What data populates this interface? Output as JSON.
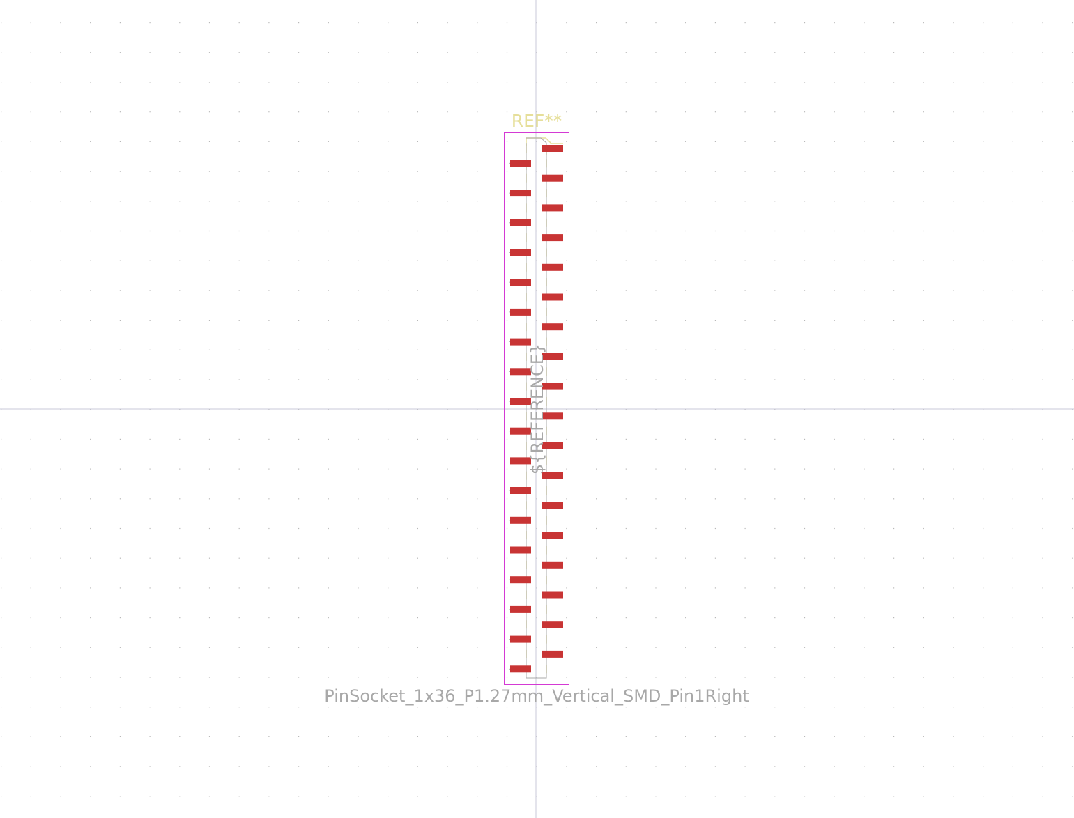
{
  "footprint": {
    "ref_text": "REF**",
    "value_text": "PinSocket_1x36_P1.27mm_Vertical_SMD_Pin1Right",
    "fab_ref_text": "${REFERENCE}",
    "pad_count": 36,
    "pin_pitch_mm": 1.27
  },
  "colors": {
    "background": "#ffffff",
    "grid_dot": "#b8b8b8",
    "axis": "#c8c8d8",
    "pad": "#c83434",
    "silkscreen": "#e6df9a",
    "courtyard": "#d43ad4",
    "fab": "#a8a8a8"
  }
}
